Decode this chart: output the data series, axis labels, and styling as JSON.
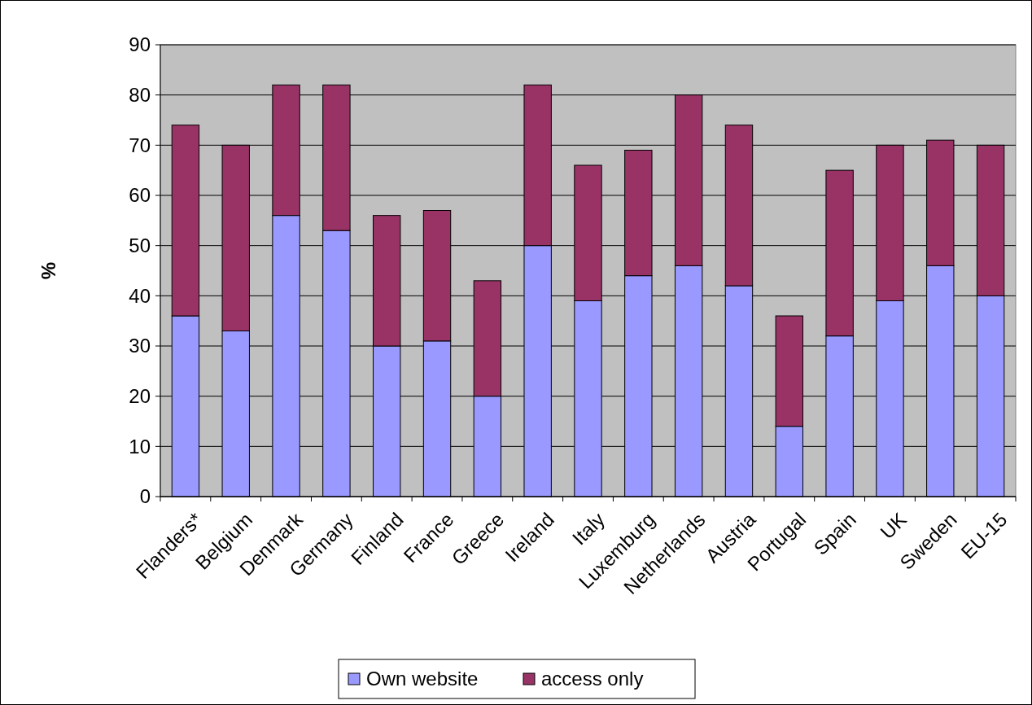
{
  "chart_data": {
    "type": "bar",
    "stacked": true,
    "ylabel": "%",
    "categories": [
      "Flanders*",
      "Belgium",
      "Denmark",
      "Germany",
      "Finland",
      "France",
      "Greece",
      "Ireland",
      "Italy",
      "Luxemburg",
      "Netherlands",
      "Austria",
      "Portugal",
      "Spain",
      "UK",
      "Sweden",
      "EU-15"
    ],
    "series": [
      {
        "name": "Own website",
        "color": "#9999ff",
        "values": [
          36,
          33,
          56,
          53,
          30,
          31,
          20,
          50,
          39,
          44,
          46,
          42,
          14,
          32,
          39,
          46,
          40
        ]
      },
      {
        "name": "access only",
        "color": "#993366",
        "values": [
          38,
          37,
          26,
          29,
          26,
          26,
          23,
          32,
          27,
          25,
          34,
          32,
          22,
          33,
          31,
          25,
          30
        ]
      }
    ],
    "ylim": [
      0,
      90
    ],
    "yticks": [
      0,
      10,
      20,
      30,
      40,
      50,
      60,
      70,
      80,
      90
    ],
    "grid": "y",
    "legend": "bottom"
  }
}
